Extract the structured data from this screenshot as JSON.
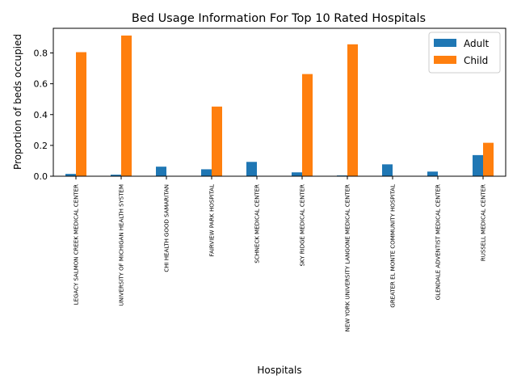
{
  "chart_data": {
    "type": "bar",
    "title": "Bed Usage Information For Top 10 Rated Hospitals",
    "xlabel": "Hospitals",
    "ylabel": "Proportion of beds occupied",
    "ylim": [
      0,
      0.96
    ],
    "yticks": [
      "0.0",
      "0.2",
      "0.4",
      "0.6",
      "0.8"
    ],
    "categories": [
      "LEGACY SALMON CREEK MEDICAL CENTER",
      "UNIVERSITY OF MICHIGAN HEALTH SYSTEM",
      "CHI HEALTH GOOD SAMARITAN",
      "FAIRVIEW PARK HOSPITAL",
      "SCHNECK MEDICAL CENTER",
      "SKY RIDGE MEDICAL CENTER",
      "NEW YORK UNIVERSITY LANGONE MEDICAL CENTER",
      "GREATER EL MONTE COMMUNITY HOSPITAL",
      "GLENDALE ADVENTIST MEDICAL CENTER",
      "RUSSELL MEDICAL CENTER"
    ],
    "series": [
      {
        "name": "Adult",
        "color": "#1f77b4",
        "values": [
          0.015,
          0.01,
          0.062,
          0.045,
          0.093,
          0.025,
          0.005,
          0.077,
          0.03,
          0.137
        ]
      },
      {
        "name": "Child",
        "color": "#ff7f0e",
        "values": [
          0.805,
          0.913,
          0.0,
          0.452,
          0.0,
          0.663,
          0.856,
          0.0,
          0.0,
          0.217
        ]
      }
    ],
    "legend": "top-right",
    "grid": false
  }
}
